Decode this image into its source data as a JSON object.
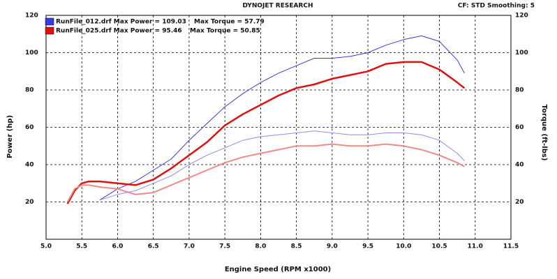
{
  "chart_data": {
    "type": "line",
    "title": "DYNOJET RESEARCH",
    "subtitle": "CF: STD  Smoothing: 5",
    "x_label": "Engine Speed (RPM x1000)",
    "y_label": "Power (hp)",
    "y2_label": "Torque (ft-lbs)",
    "legend": [
      {
        "label": "RunFile_012.drf Max Power = 109.03",
        "torque": "Max Torque = 57.79",
        "color": "#3a3ae0"
      },
      {
        "label": "RunFile_025.drf Max Power = 95.46",
        "torque": "Max Torque = 50.85",
        "color": "#e01010"
      }
    ],
    "x": [
      5.3,
      5.4,
      5.5,
      5.6,
      5.75,
      6,
      6.25,
      6.5,
      6.75,
      7,
      7.25,
      7.5,
      7.75,
      8,
      8.25,
      8.5,
      8.75,
      9,
      9.25,
      9.5,
      9.75,
      10,
      10.25,
      10.5,
      10.75,
      10.85
    ],
    "series": [
      {
        "color": "#3a3ae0",
        "width": 1,
        "values": [
          null,
          null,
          null,
          null,
          21,
          27,
          31,
          37,
          43,
          53,
          62,
          71,
          78,
          84,
          89,
          93,
          97,
          97,
          98,
          100,
          104,
          107,
          109,
          106,
          96,
          89
        ]
      },
      {
        "color": "#8c8cf0",
        "width": 1,
        "axis": "y2",
        "values": [
          null,
          null,
          null,
          null,
          21,
          24,
          26,
          30,
          34,
          40,
          45,
          49,
          53,
          55,
          56,
          57,
          58,
          57,
          56,
          56,
          57,
          57,
          56,
          53,
          46,
          42
        ]
      },
      {
        "color": "#e01010",
        "width": 2.5,
        "values": [
          19,
          26,
          30,
          31,
          31,
          30,
          29,
          32,
          38,
          45,
          52,
          61,
          67,
          72,
          77,
          81,
          83,
          86,
          88,
          90,
          94,
          95,
          95,
          91,
          84,
          81
        ]
      },
      {
        "color": "#f08a8a",
        "width": 2,
        "axis": "y2",
        "values": [
          20,
          27,
          29,
          29,
          28,
          27,
          24,
          25,
          29,
          33,
          37,
          41,
          44,
          46,
          48,
          50,
          50,
          51,
          50,
          50,
          51,
          50,
          48,
          45,
          41,
          39
        ]
      }
    ],
    "xlim": [
      5,
      11.5
    ],
    "xticks": [
      {
        "value": 5,
        "label": "5.0"
      },
      5.5,
      {
        "value": 6,
        "label": "6.0"
      },
      6.5,
      {
        "value": 7,
        "label": "7.0"
      },
      7.5,
      {
        "value": 8,
        "label": "8.0"
      },
      8.5,
      {
        "value": 9,
        "label": "9.0"
      },
      9.5,
      {
        "value": 10,
        "label": "10.0"
      },
      10.5,
      {
        "value": 11,
        "label": "11.0"
      },
      11.5
    ],
    "ylim": [
      0,
      120
    ],
    "yticks": [
      20,
      40,
      60,
      80,
      100,
      120
    ],
    "y2lim": [
      0,
      120
    ],
    "y2ticks": [
      20,
      40,
      60,
      80,
      100,
      120
    ],
    "grid": true
  }
}
